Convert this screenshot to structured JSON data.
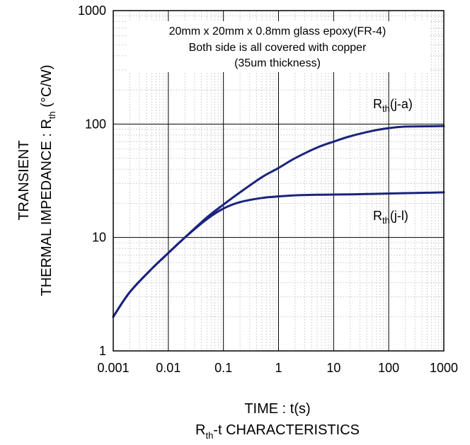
{
  "chart_data": {
    "type": "line",
    "xscale": "log",
    "yscale": "log",
    "xlim": [
      0.001,
      1000
    ],
    "ylim": [
      1,
      1000
    ],
    "xticks": [
      0.001,
      0.01,
      0.1,
      1,
      10,
      100,
      1000
    ],
    "xtick_labels": [
      "0.001",
      "0.01",
      "0.1",
      "1",
      "10",
      "100",
      "1000"
    ],
    "yticks": [
      1,
      10,
      100,
      1000
    ],
    "ytick_labels": [
      "1",
      "10",
      "100",
      "1000"
    ],
    "grid": true,
    "xlabel": "TIME : t(s)",
    "ylabel_line1": "TRANSIENT",
    "ylabel_main": "THERMAL IMPEDANCE : R",
    "ylabel_sub": "th",
    "ylabel_unit": " (°C/W)",
    "caption_main": "R",
    "caption_sub": "th",
    "caption_rest": "-t CHARACTERISTICS",
    "annotation": [
      "20mm x 20mm x 0.8mm glass epoxy(FR-4)",
      "Both side is all covered with copper",
      "(35um thickness)"
    ],
    "series": [
      {
        "name_main": "R",
        "name_sub": "th",
        "name_rest": "(j-a)",
        "color": "#1a237e",
        "x": [
          0.001,
          0.002,
          0.005,
          0.01,
          0.02,
          0.05,
          0.1,
          0.2,
          0.5,
          1,
          2,
          5,
          10,
          20,
          50,
          100,
          200,
          500,
          1000
        ],
        "y": [
          2.0,
          3.3,
          5.3,
          7.3,
          10.0,
          15.0,
          19.5,
          25.0,
          34.0,
          41.0,
          50.0,
          62.0,
          70.0,
          78.0,
          87.0,
          92.0,
          95.0,
          95.5,
          96.0
        ]
      },
      {
        "name_main": "R",
        "name_sub": "th",
        "name_rest": "(j-l)",
        "color": "#1a237e",
        "x": [
          0.001,
          0.002,
          0.005,
          0.01,
          0.02,
          0.05,
          0.1,
          0.2,
          0.5,
          1,
          2,
          5,
          10,
          20,
          50,
          100,
          200,
          500,
          1000
        ],
        "y": [
          2.0,
          3.3,
          5.3,
          7.3,
          10.0,
          14.5,
          18.0,
          20.5,
          22.3,
          23.0,
          23.5,
          23.8,
          23.9,
          24.0,
          24.2,
          24.4,
          24.6,
          24.8,
          25.0
        ]
      }
    ]
  }
}
